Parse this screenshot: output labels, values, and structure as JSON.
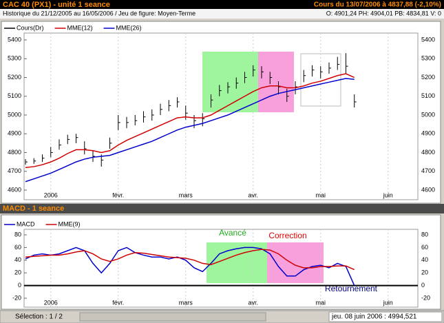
{
  "header": {
    "title": "CAC 40 (PX1) - unité 1 seance",
    "quote": "Cours du 13/07/2006 à 4837,88 (-2,10%)",
    "history": "Historique du 21/12/2005 au 16/05/2006 / Jeu de figure: Moyen-Terme",
    "ohlc": "O: 4901,24 PH: 4904,01 PB: 4834,81 V: 0"
  },
  "chart_data": [
    {
      "type": "ohlc",
      "categories": [
        null,
        null,
        null,
        "2006",
        null,
        null,
        null,
        null,
        null,
        null,
        null,
        "févr.",
        null,
        null,
        null,
        null,
        null,
        null,
        null,
        "mars",
        null,
        null,
        null,
        null,
        null,
        null,
        null,
        "avr.",
        null,
        null,
        null,
        null,
        null,
        null,
        null,
        "mai",
        null,
        null,
        null,
        null,
        null,
        null,
        null,
        "juin",
        null,
        null,
        null
      ],
      "series": [
        {
          "name": "Cours(Dr)",
          "color": "#000000",
          "high": [
            4765,
            4770,
            4790,
            4830,
            4870,
            4895,
            4900,
            4860,
            4810,
            4790,
            4880,
            5000,
            4990,
            5000,
            5020,
            5030,
            5060,
            5080,
            5095,
            5050,
            5000,
            5010,
            5110,
            5160,
            5175,
            5200,
            5230,
            5265,
            5260,
            5230,
            5180,
            5140,
            5180,
            5240,
            5265,
            5260,
            5280,
            5310,
            5330,
            5110,
            null,
            null,
            null,
            null,
            null,
            null,
            null
          ],
          "low": [
            4735,
            4740,
            4750,
            4775,
            4815,
            4845,
            4850,
            4790,
            4750,
            4725,
            4820,
            4920,
            4930,
            4945,
            4960,
            4970,
            5000,
            5020,
            5040,
            4975,
            4930,
            4940,
            5040,
            5100,
            5115,
            5140,
            5170,
            5205,
            5195,
            5165,
            5110,
            5070,
            5110,
            5175,
            5205,
            5195,
            5220,
            5240,
            5220,
            5040,
            null,
            null,
            null,
            null,
            null,
            null,
            null
          ],
          "close": [
            4750,
            4755,
            4770,
            4800,
            4840,
            4870,
            4880,
            4820,
            4780,
            4760,
            4850,
            4960,
            4960,
            4970,
            4990,
            5000,
            5030,
            5050,
            5070,
            5010,
            4970,
            4980,
            5080,
            5130,
            5150,
            5170,
            5200,
            5240,
            5230,
            5200,
            5150,
            5100,
            5150,
            5210,
            5240,
            5230,
            5250,
            5270,
            5260,
            5070,
            null,
            null,
            null,
            null,
            null,
            null,
            null
          ]
        },
        {
          "name": "MME(12)",
          "color": "#d00000",
          "values": [
            4720,
            4725,
            4735,
            4750,
            4770,
            4795,
            4815,
            4815,
            4810,
            4800,
            4810,
            4840,
            4865,
            4885,
            4905,
            4925,
            4945,
            4965,
            4985,
            4990,
            4985,
            4985,
            5000,
            5025,
            5050,
            5075,
            5100,
            5125,
            5145,
            5155,
            5155,
            5145,
            5145,
            5155,
            5170,
            5180,
            5195,
            5210,
            5220,
            5200,
            null,
            null,
            null,
            null,
            null,
            null,
            null
          ]
        },
        {
          "name": "MME(26)",
          "color": "#0000cc",
          "values": [
            4645,
            4660,
            4675,
            4690,
            4710,
            4730,
            4750,
            4765,
            4775,
            4780,
            4785,
            4800,
            4815,
            4830,
            4845,
            4860,
            4880,
            4900,
            4920,
            4935,
            4945,
            4955,
            4970,
            4985,
            5000,
            5020,
            5040,
            5060,
            5080,
            5100,
            5115,
            5125,
            5135,
            5145,
            5155,
            5165,
            5175,
            5185,
            5195,
            5190,
            null,
            null,
            null,
            null,
            null,
            null,
            null
          ]
        }
      ],
      "ylim": [
        4600,
        5400
      ],
      "yticks": [
        4600,
        4700,
        4800,
        4900,
        5000,
        5100,
        5200,
        5300,
        5400
      ]
    },
    {
      "type": "line",
      "title": "MACD - 1 seance",
      "categories": [
        null,
        null,
        null,
        "2006",
        null,
        null,
        null,
        null,
        null,
        null,
        null,
        "févr.",
        null,
        null,
        null,
        null,
        null,
        null,
        null,
        "mars",
        null,
        null,
        null,
        null,
        null,
        null,
        null,
        "avr.",
        null,
        null,
        null,
        null,
        null,
        null,
        null,
        "mai",
        null,
        null,
        null,
        null,
        null,
        null,
        null,
        "juin",
        null,
        null,
        null
      ],
      "series": [
        {
          "name": "MACD",
          "color": "#0000cc",
          "values": [
            42,
            48,
            50,
            48,
            50,
            55,
            60,
            55,
            35,
            20,
            35,
            55,
            60,
            52,
            48,
            45,
            45,
            42,
            45,
            40,
            28,
            22,
            35,
            50,
            55,
            58,
            60,
            60,
            58,
            50,
            30,
            15,
            15,
            25,
            30,
            32,
            28,
            35,
            30,
            0,
            null,
            null,
            null,
            null,
            null,
            null,
            null
          ]
        },
        {
          "name": "MME(9)",
          "color": "#d00000",
          "values": [
            45,
            46,
            47,
            48,
            48,
            50,
            53,
            55,
            50,
            42,
            38,
            42,
            48,
            52,
            51,
            49,
            47,
            45,
            44,
            43,
            40,
            35,
            33,
            38,
            43,
            48,
            52,
            55,
            57,
            56,
            50,
            40,
            32,
            28,
            28,
            30,
            30,
            31,
            31,
            25,
            null,
            null,
            null,
            null,
            null,
            null,
            null
          ]
        }
      ],
      "ylim": [
        -20,
        80
      ],
      "yticks": [
        -20,
        0,
        20,
        40,
        60,
        80
      ],
      "annotations": [
        "Avancé",
        "Correction",
        "Rétournement"
      ]
    }
  ],
  "status": {
    "selection": "Sélection : 1 / 2",
    "cursor": "jeu. 08 juin 2006 : 4994,521"
  }
}
